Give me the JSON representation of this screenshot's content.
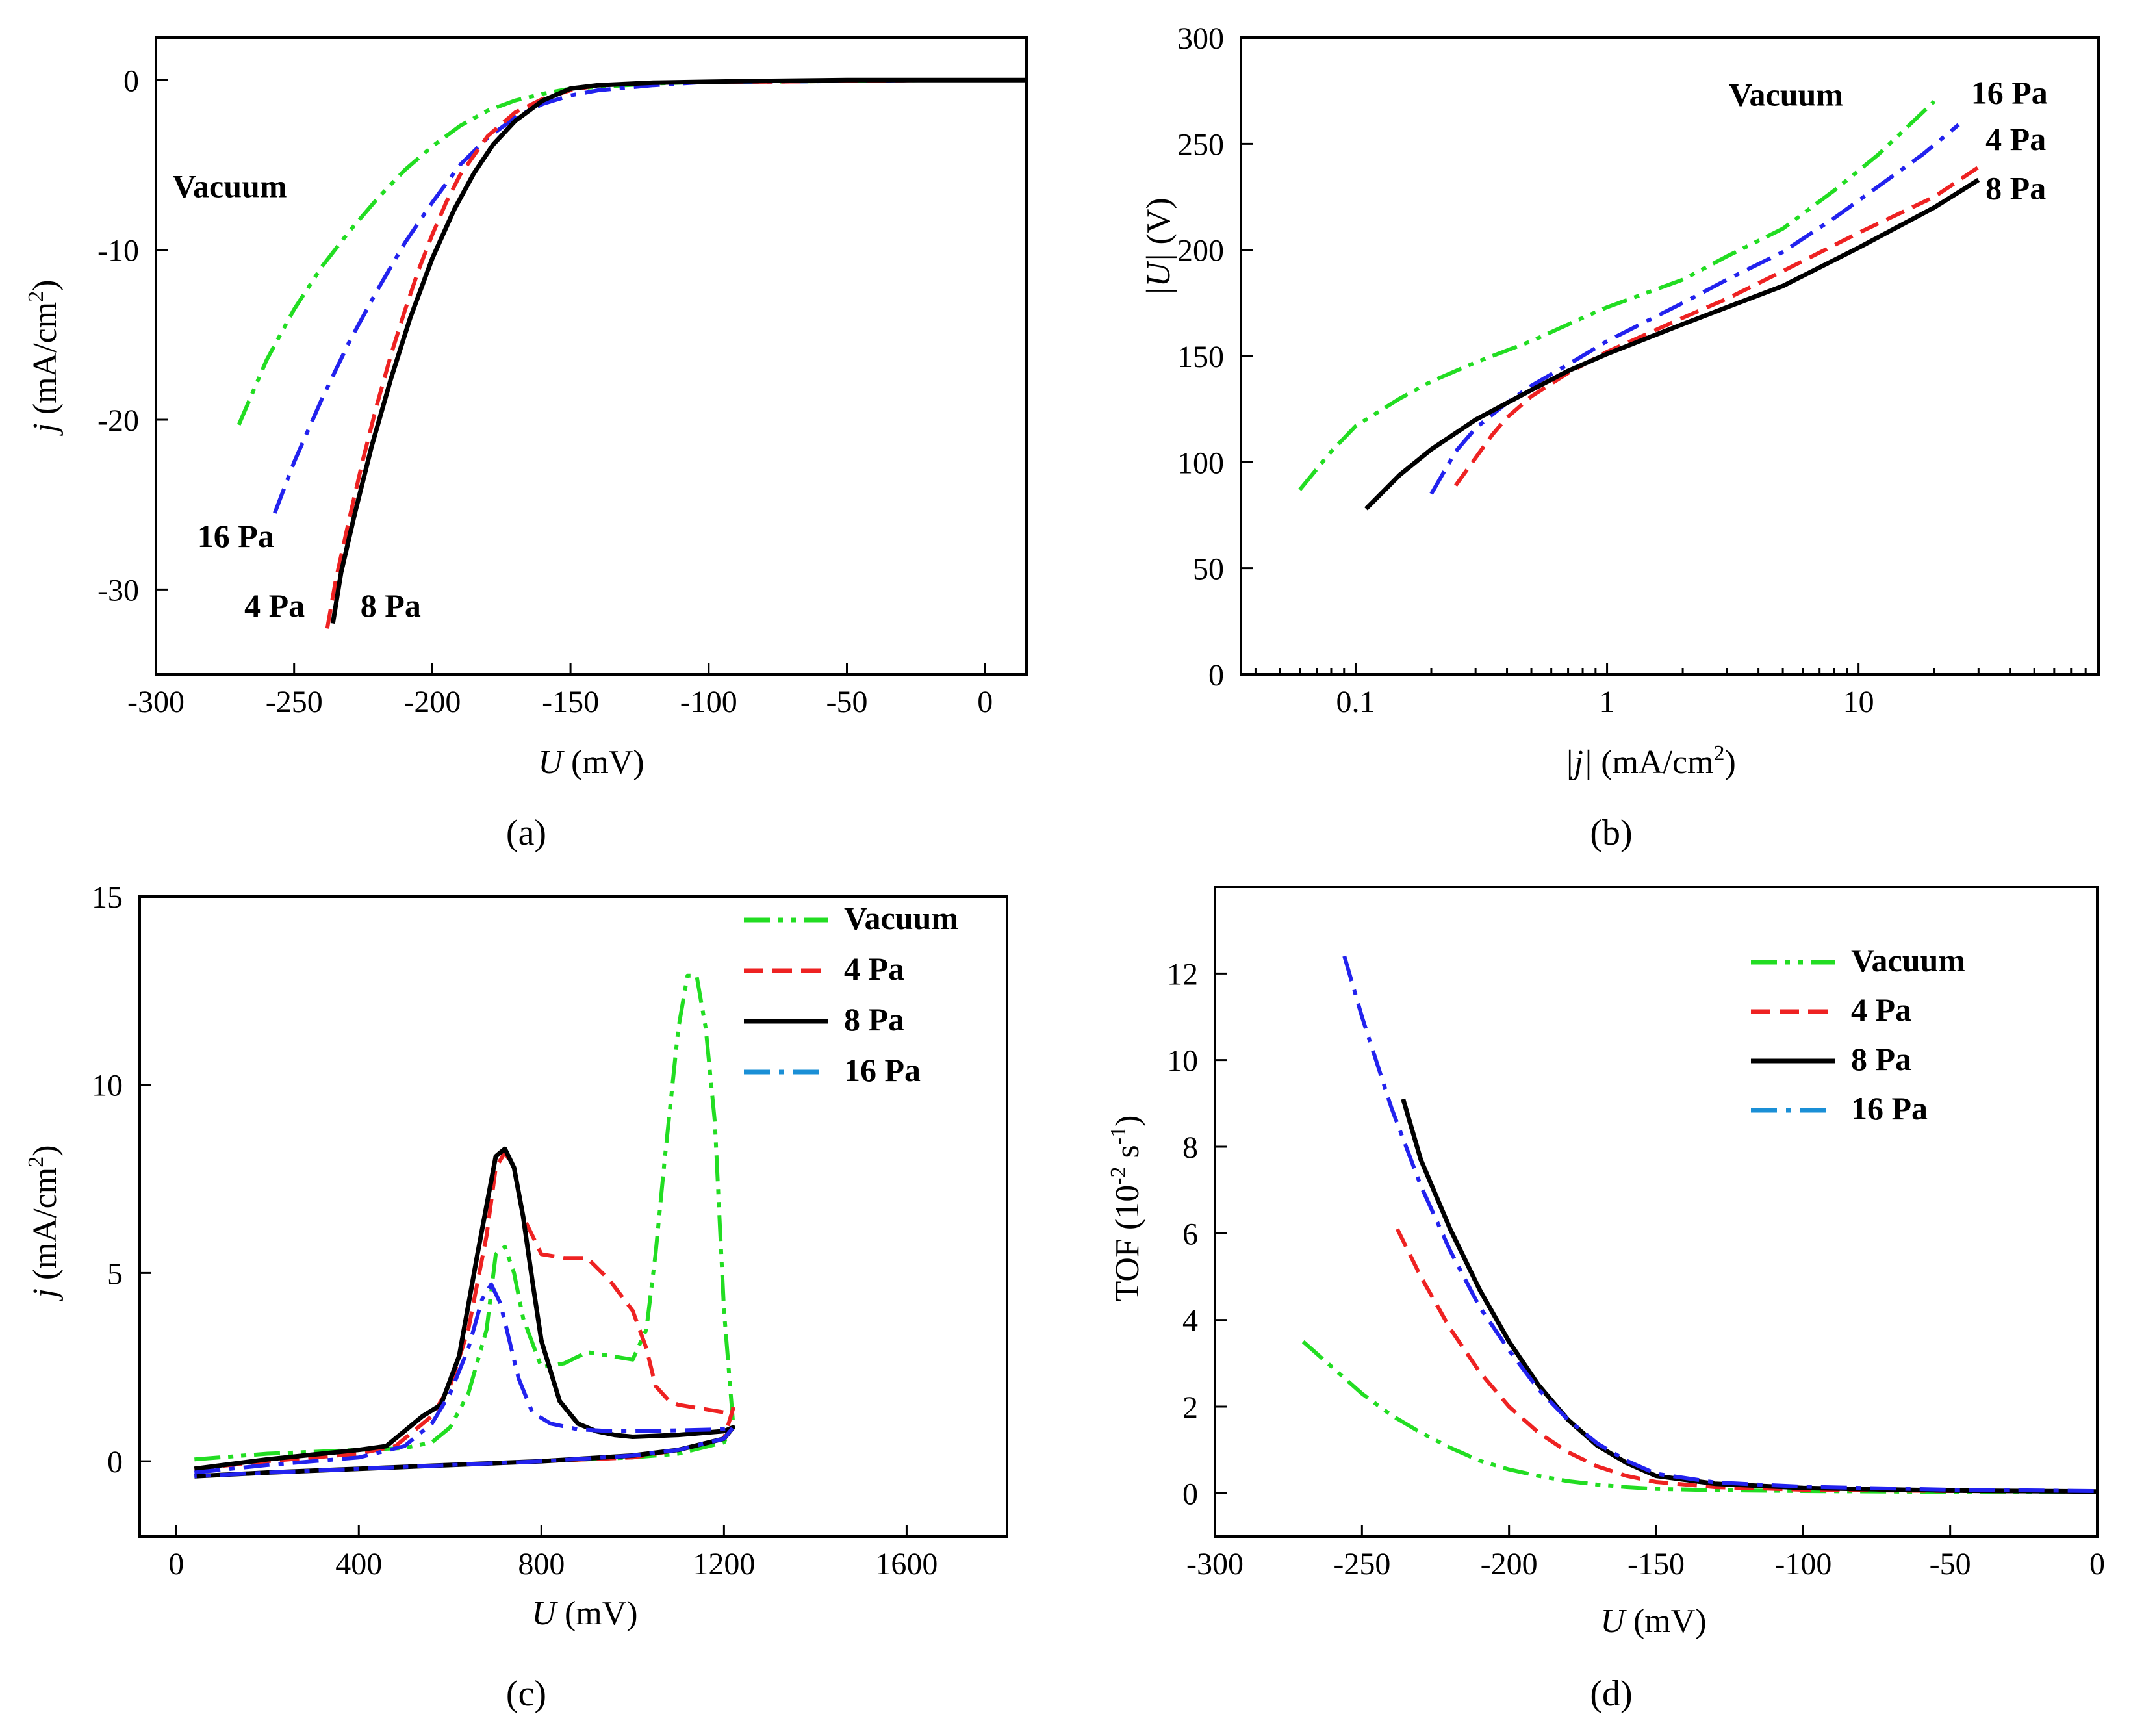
{
  "colors": {
    "vacuum": "#22dd22",
    "p4": "#ee2222",
    "p8": "#000000",
    "p16": "#2222ee",
    "legend16": "#1a8fd6"
  },
  "chart_data": [
    {
      "panel": "a",
      "caption": "(a)",
      "type": "line",
      "xlabel_sym": "U",
      "xlabel_unit": " (mV)",
      "ylabel_sym": "j",
      "ylabel_unit": " (mA/cm",
      "ylabel_sup": "2",
      "ylabel_close": ")",
      "xlim": [
        -300,
        15
      ],
      "ylim": [
        -35,
        2.5
      ],
      "xticks": [
        -300,
        -250,
        -200,
        -150,
        -100,
        -50,
        0
      ],
      "yticks": [
        0,
        -10,
        -20,
        -30
      ],
      "annotations": [
        {
          "text": "Vacuum",
          "x": -294,
          "y": -6.9
        },
        {
          "text": "16 Pa",
          "x": -285,
          "y": -27.5
        },
        {
          "text": "4 Pa",
          "x": -268,
          "y": -31.6
        },
        {
          "text": "8 Pa",
          "x": -226,
          "y": -31.6
        }
      ],
      "series": [
        {
          "name": "Vacuum",
          "style": "dashdotdot",
          "color": "vacuum",
          "x": [
            -270,
            -260,
            -250,
            -240,
            -230,
            -220,
            -210,
            -200,
            -190,
            -180,
            -170,
            -160,
            -150,
            -140,
            -120,
            -100,
            -80,
            -50,
            -20,
            0,
            15
          ],
          "y": [
            -20.3,
            -16.5,
            -13.5,
            -11.0,
            -8.9,
            -7.0,
            -5.3,
            -3.9,
            -2.7,
            -1.8,
            -1.2,
            -0.8,
            -0.5,
            -0.4,
            -0.2,
            -0.1,
            -0.1,
            -0.05,
            0,
            0,
            0
          ]
        },
        {
          "name": "16 Pa",
          "style": "dashdot",
          "color": "p16",
          "x": [
            -257,
            -250,
            -240,
            -230,
            -220,
            -210,
            -200,
            -190,
            -180,
            -170,
            -160,
            -150,
            -140,
            -120,
            -100,
            -80,
            -50,
            -20,
            0,
            15
          ],
          "y": [
            -25.5,
            -22.5,
            -18.8,
            -15.4,
            -12.4,
            -9.6,
            -7.2,
            -5.0,
            -3.4,
            -2.2,
            -1.4,
            -0.9,
            -0.6,
            -0.3,
            -0.1,
            -0.1,
            -0.05,
            0,
            0,
            0
          ]
        },
        {
          "name": "4 Pa",
          "style": "dashed",
          "color": "p4",
          "x": [
            -238,
            -235,
            -230,
            -225,
            -220,
            -215,
            -210,
            -205,
            -200,
            -195,
            -190,
            -180,
            -170,
            -160,
            -150,
            -140,
            -120,
            -100,
            -80,
            -50,
            -20,
            0,
            15
          ],
          "y": [
            -32.3,
            -29.5,
            -25.8,
            -22.3,
            -19.1,
            -16.2,
            -13.6,
            -11.2,
            -9.1,
            -7.2,
            -5.6,
            -3.3,
            -1.9,
            -1.1,
            -0.6,
            -0.3,
            -0.15,
            -0.1,
            -0.1,
            -0.05,
            0,
            0,
            0
          ]
        },
        {
          "name": "8 Pa",
          "style": "solid",
          "color": "p8",
          "x": [
            -236,
            -233,
            -228,
            -222,
            -215,
            -208,
            -200,
            -192,
            -185,
            -178,
            -170,
            -160,
            -150,
            -140,
            -120,
            -100,
            -80,
            -50,
            -20,
            0,
            15
          ],
          "y": [
            -32.0,
            -29.0,
            -25.5,
            -21.6,
            -17.6,
            -14.0,
            -10.5,
            -7.6,
            -5.5,
            -3.8,
            -2.4,
            -1.2,
            -0.5,
            -0.3,
            -0.15,
            -0.1,
            -0.05,
            0,
            0,
            0,
            0
          ]
        }
      ]
    },
    {
      "panel": "b",
      "caption": "(b)",
      "type": "line",
      "xscale": "log",
      "xlabel_sym": "|j|",
      "xlabel_unit": " (mA/cm",
      "xlabel_sup": "2",
      "xlabel_close": ")",
      "ylabel_sym": "|U|",
      "ylabel_unit": " (V)",
      "xlim": [
        0.035,
        90
      ],
      "ylim": [
        0,
        300
      ],
      "xticks": [
        0.1,
        1,
        10
      ],
      "xticklabels": [
        "0.1",
        "1",
        "10"
      ],
      "yticks": [
        0,
        50,
        100,
        150,
        200,
        250,
        300
      ],
      "annotations": [
        {
          "text": "Vacuum",
          "x": 3.05,
          "y": 268
        },
        {
          "text": "16 Pa",
          "x": 28,
          "y": 269
        },
        {
          "text": "4 Pa",
          "x": 32,
          "y": 247
        },
        {
          "text": "8 Pa",
          "x": 32,
          "y": 224
        }
      ],
      "series": [
        {
          "name": "Vacuum",
          "style": "dashdotdot",
          "color": "vacuum",
          "x": [
            0.06,
            0.08,
            0.1,
            0.15,
            0.2,
            0.3,
            0.5,
            0.8,
            1,
            2,
            3,
            5,
            8,
            12,
            20
          ],
          "y": [
            87,
            105,
            117,
            130,
            138,
            147,
            157,
            168,
            173,
            186,
            197,
            210,
            228,
            245,
            270
          ]
        },
        {
          "name": "16 Pa",
          "style": "dashdot",
          "color": "p16",
          "x": [
            0.2,
            0.25,
            0.3,
            0.4,
            0.5,
            0.7,
            1,
            2,
            3,
            5,
            8,
            12,
            18,
            25
          ],
          "y": [
            85,
            105,
            116,
            128,
            136,
            146,
            157,
            175,
            186,
            199,
            215,
            230,
            245,
            259
          ]
        },
        {
          "name": "4 Pa",
          "style": "dashed",
          "color": "p4",
          "x": [
            0.25,
            0.3,
            0.35,
            0.4,
            0.5,
            0.7,
            1,
            2,
            3,
            5,
            10,
            20,
            30
          ],
          "y": [
            89,
            102,
            113,
            121,
            131,
            142,
            152,
            168,
            177,
            190,
            208,
            225,
            239
          ]
        },
        {
          "name": "8 Pa",
          "style": "solid",
          "color": "p8",
          "x": [
            0.11,
            0.15,
            0.2,
            0.3,
            0.5,
            0.7,
            1,
            2,
            3,
            5,
            10,
            20,
            30
          ],
          "y": [
            78,
            94,
            106,
            120,
            134,
            143,
            151,
            165,
            173,
            183,
            201,
            220,
            233
          ]
        }
      ]
    },
    {
      "panel": "c",
      "caption": "(c)",
      "type": "line",
      "xlabel_sym": "U",
      "xlabel_unit": " (mV)",
      "ylabel_sym": "j",
      "ylabel_unit": " (mA/cm",
      "ylabel_sup": "2",
      "ylabel_close": ")",
      "xlim": [
        -80,
        1820
      ],
      "ylim": [
        -2,
        15
      ],
      "xticks": [
        0,
        400,
        800,
        1200,
        1600
      ],
      "yticks": [
        0,
        5,
        10,
        15
      ],
      "legend": {
        "position": "top-right",
        "entries": [
          "Vacuum",
          "4 Pa",
          "8 Pa",
          "16 Pa"
        ]
      },
      "series": [
        {
          "name": "Vacuum",
          "style": "dashdotdot",
          "color": "vacuum",
          "x": [
            40,
            200,
            400,
            500,
            560,
            600,
            640,
            680,
            700,
            720,
            740,
            760,
            800,
            850,
            900,
            950,
            1000,
            1030,
            1050,
            1070,
            1100,
            1120,
            1140,
            1160,
            1180,
            1200,
            1220,
            1200,
            1100,
            1000,
            800,
            600,
            400,
            200,
            40
          ],
          "y": [
            0.05,
            0.2,
            0.3,
            0.35,
            0.5,
            0.9,
            1.8,
            3.5,
            5.5,
            5.7,
            5.0,
            3.8,
            2.5,
            2.6,
            2.9,
            2.8,
            2.7,
            3.5,
            5.5,
            8.0,
            11.5,
            12.9,
            12.9,
            11.5,
            9.0,
            4.0,
            1.0,
            0.5,
            0.2,
            0.1,
            0.0,
            -0.1,
            -0.2,
            -0.3,
            -0.4
          ]
        },
        {
          "name": "4 Pa",
          "style": "dashed",
          "color": "p4",
          "x": [
            40,
            200,
            400,
            480,
            520,
            560,
            600,
            640,
            680,
            700,
            720,
            740,
            760,
            800,
            850,
            900,
            950,
            1000,
            1030,
            1050,
            1080,
            1100,
            1150,
            1200,
            1220,
            1200,
            1100,
            1000,
            800,
            600,
            400,
            200,
            40
          ],
          "y": [
            -0.2,
            0.0,
            0.2,
            0.4,
            0.8,
            1.2,
            2.0,
            3.5,
            6.0,
            7.8,
            8.2,
            7.8,
            6.5,
            5.5,
            5.4,
            5.4,
            4.8,
            4.0,
            3.0,
            2.0,
            1.6,
            1.5,
            1.4,
            1.3,
            1.4,
            0.6,
            0.3,
            0.1,
            0.0,
            -0.1,
            -0.2,
            -0.3,
            -0.4
          ]
        },
        {
          "name": "8 Pa",
          "style": "solid",
          "color": "p8",
          "x": [
            40,
            200,
            400,
            460,
            500,
            540,
            580,
            620,
            660,
            700,
            720,
            740,
            760,
            780,
            800,
            840,
            880,
            920,
            960,
            1000,
            1100,
            1200,
            1220,
            1200,
            1100,
            1000,
            800,
            600,
            400,
            200,
            40
          ],
          "y": [
            -0.2,
            0.05,
            0.3,
            0.4,
            0.8,
            1.2,
            1.5,
            2.8,
            5.5,
            8.1,
            8.3,
            7.8,
            6.5,
            4.8,
            3.2,
            1.6,
            1.0,
            0.8,
            0.7,
            0.65,
            0.7,
            0.8,
            0.9,
            0.6,
            0.3,
            0.15,
            0.0,
            -0.1,
            -0.2,
            -0.3,
            -0.4
          ]
        },
        {
          "name": "16 Pa",
          "style": "dashdot",
          "color": "p16",
          "x": [
            40,
            200,
            400,
            500,
            560,
            600,
            640,
            670,
            690,
            710,
            730,
            750,
            780,
            820,
            880,
            950,
            1000,
            1100,
            1200,
            1220,
            1200,
            1100,
            1000,
            800,
            600,
            400,
            200,
            40
          ],
          "y": [
            -0.3,
            -0.1,
            0.1,
            0.4,
            1.0,
            1.8,
            3.0,
            4.3,
            4.7,
            4.2,
            3.2,
            2.2,
            1.3,
            1.0,
            0.85,
            0.8,
            0.8,
            0.82,
            0.85,
            0.9,
            0.6,
            0.3,
            0.15,
            0.0,
            -0.1,
            -0.2,
            -0.3,
            -0.4
          ]
        }
      ]
    },
    {
      "panel": "d",
      "caption": "(d)",
      "type": "line",
      "xlabel_sym": "U",
      "xlabel_unit": " (mV)",
      "ylabel_text": "TOF (10",
      "ylabel_sup": "-2",
      "ylabel_mid": " s",
      "ylabel_sup2": "-1",
      "ylabel_close": ")",
      "xlim": [
        -300,
        0
      ],
      "ylim": [
        -1,
        14
      ],
      "xticks": [
        -300,
        -250,
        -200,
        -150,
        -100,
        -50,
        0
      ],
      "yticks": [
        0,
        2,
        4,
        6,
        8,
        10,
        12
      ],
      "legend": {
        "position": "top-right",
        "entries": [
          "Vacuum",
          "4 Pa",
          "8 Pa",
          "16 Pa"
        ]
      },
      "series": [
        {
          "name": "Vacuum",
          "style": "dashdotdot",
          "color": "vacuum",
          "x": [
            -270,
            -260,
            -250,
            -240,
            -230,
            -220,
            -210,
            -200,
            -190,
            -180,
            -170,
            -160,
            -150,
            -130,
            -100,
            -50,
            0
          ],
          "y": [
            3.5,
            2.9,
            2.3,
            1.8,
            1.4,
            1.05,
            0.75,
            0.55,
            0.4,
            0.28,
            0.2,
            0.14,
            0.1,
            0.07,
            0.05,
            0.03,
            0.03
          ]
        },
        {
          "name": "4 Pa",
          "style": "dashed",
          "color": "p4",
          "x": [
            -238,
            -230,
            -220,
            -210,
            -200,
            -190,
            -180,
            -170,
            -160,
            -150,
            -130,
            -100,
            -50,
            0
          ],
          "y": [
            6.1,
            5.0,
            3.8,
            2.8,
            2.0,
            1.4,
            0.95,
            0.62,
            0.4,
            0.26,
            0.14,
            0.08,
            0.05,
            0.04
          ]
        },
        {
          "name": "8 Pa",
          "style": "solid",
          "color": "p8",
          "x": [
            -236,
            -230,
            -220,
            -210,
            -200,
            -190,
            -180,
            -170,
            -160,
            -150,
            -130,
            -100,
            -50,
            0
          ],
          "y": [
            9.1,
            7.7,
            6.1,
            4.7,
            3.5,
            2.5,
            1.7,
            1.1,
            0.7,
            0.4,
            0.22,
            0.12,
            0.06,
            0.04
          ]
        },
        {
          "name": "16 Pa",
          "style": "dashdot",
          "color": "p16",
          "x": [
            -256,
            -250,
            -240,
            -230,
            -220,
            -210,
            -200,
            -190,
            -180,
            -170,
            -160,
            -150,
            -130,
            -100,
            -50,
            0
          ],
          "y": [
            12.4,
            11.0,
            8.9,
            7.1,
            5.6,
            4.3,
            3.3,
            2.4,
            1.7,
            1.15,
            0.75,
            0.45,
            0.25,
            0.15,
            0.08,
            0.05
          ]
        }
      ]
    }
  ]
}
